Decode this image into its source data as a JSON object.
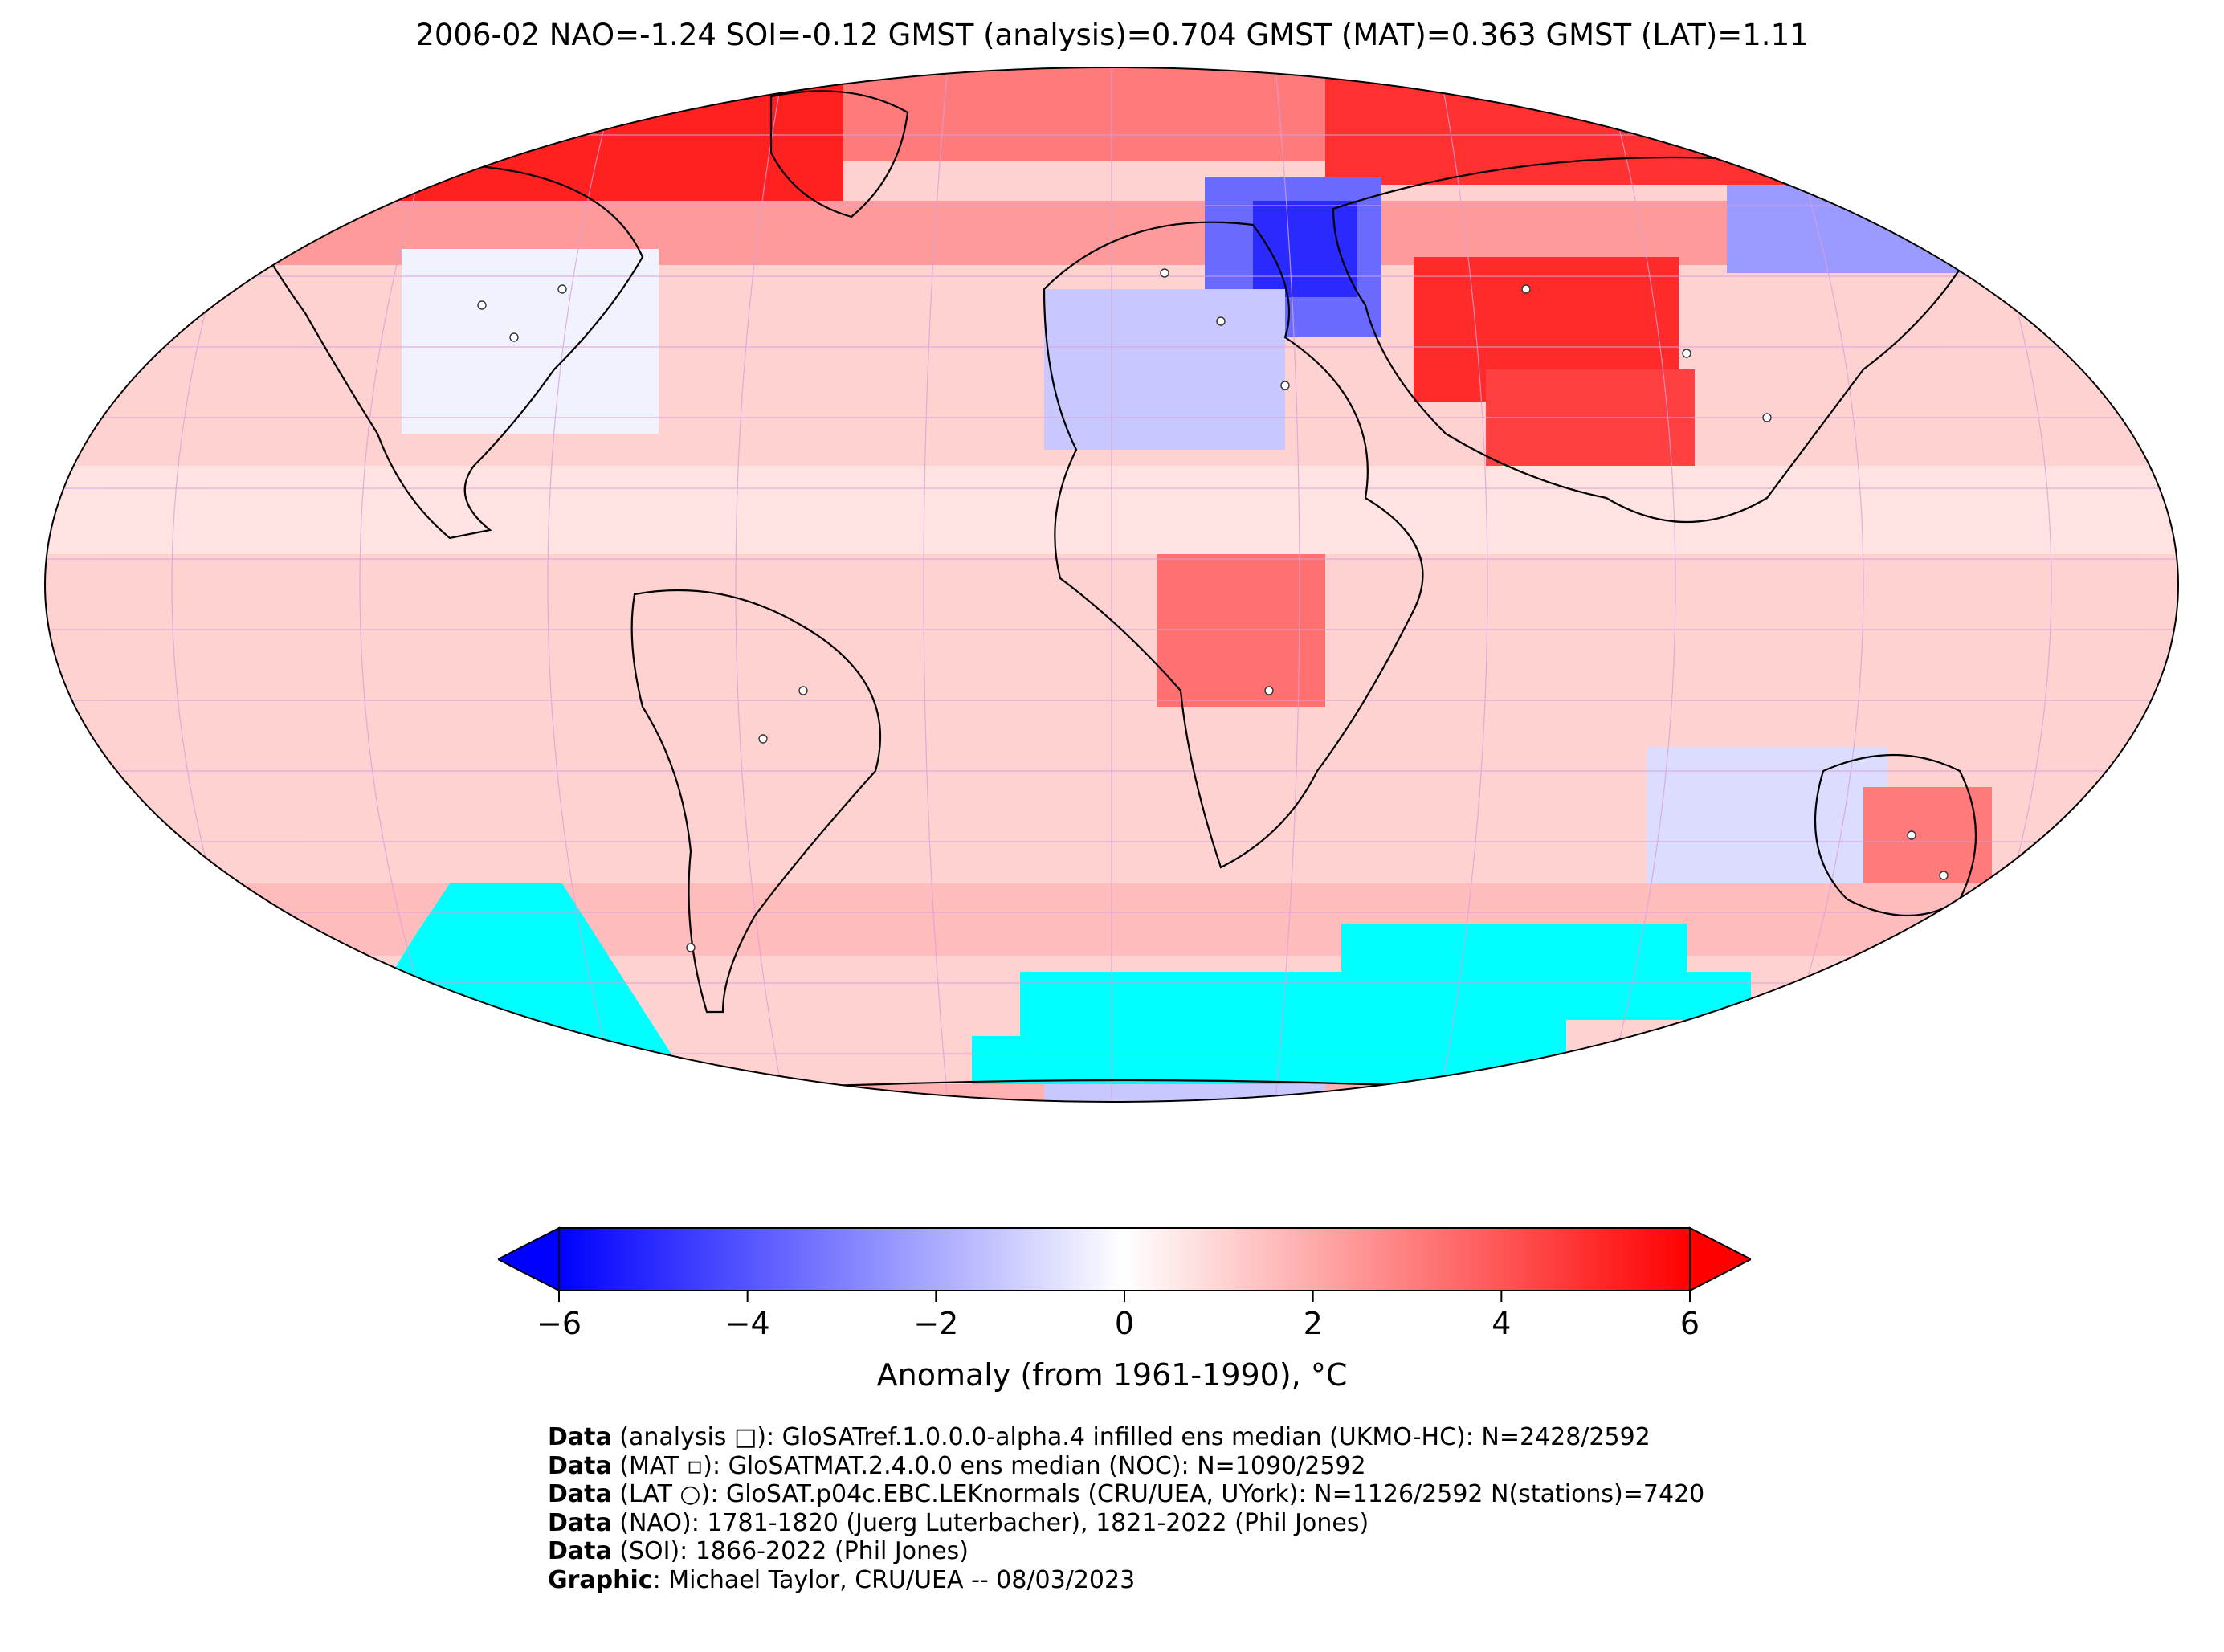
{
  "title": "2006-02 NAO=-1.24 SOI=-0.12 GMST (analysis)=0.704 GMST (MAT)=0.363 GMST (LAT)=1.11",
  "colorbar": {
    "label": "Anomaly (from 1961-1990), °C",
    "ticks": [
      "−6",
      "−4",
      "−2",
      "0",
      "2",
      "4",
      "6"
    ],
    "range": [
      -6,
      6
    ],
    "colors": {
      "min": "#0000ff",
      "mid": "#ffffff",
      "max": "#ff0000",
      "missing": "#00ffff"
    }
  },
  "credits": [
    {
      "bold": "Data",
      "text": " (analysis □): GloSATref.1.0.0.0-alpha.4 infilled ens median (UKMO-HC): N=2428/2592"
    },
    {
      "bold": "Data",
      "text": " (MAT ▫): GloSATMAT.2.4.0.0 ens median (NOC): N=1090/2592"
    },
    {
      "bold": "Data",
      "text": " (LAT ○): GloSAT.p04c.EBC.LEKnormals (CRU/UEA, UYork): N=1126/2592 N(stations)=7420"
    },
    {
      "bold": "Data",
      "text": " (NAO): 1781-1820 (Juerg Luterbacher), 1821-2022 (Phil Jones)"
    },
    {
      "bold": "Data",
      "text": " (SOI): 1866-2022 (Phil Jones)"
    },
    {
      "bold": "Graphic",
      "text": ": Michael Taylor, CRU/UEA -- 08/03/2023"
    }
  ]
}
